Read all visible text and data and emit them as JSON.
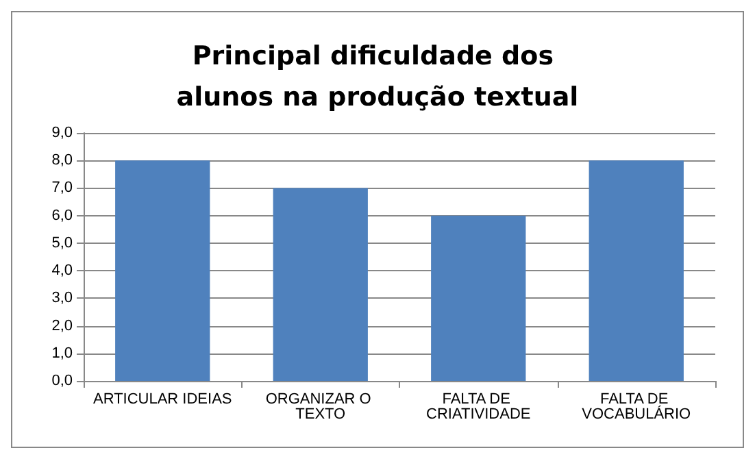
{
  "chart_data": {
    "type": "bar",
    "title": "Principal dificuldade dos alunos na produção textual",
    "categories": [
      "ARTICULAR IDEIAS",
      "ORGANIZAR O TEXTO",
      "FALTA DE CRIATIVIDADE",
      "FALTA DE VOCABULÁRIO"
    ],
    "values": [
      8,
      7,
      6,
      8
    ],
    "color": "#4f81bd",
    "ylim": [
      0,
      9
    ],
    "yticks": [
      {
        "value": 0,
        "label": "0,0"
      },
      {
        "value": 1,
        "label": "1,0"
      },
      {
        "value": 2,
        "label": "2,0"
      },
      {
        "value": 3,
        "label": "3,0"
      },
      {
        "value": 4,
        "label": "4,0"
      },
      {
        "value": 5,
        "label": "5,0"
      },
      {
        "value": 6,
        "label": "6,0"
      },
      {
        "value": 7,
        "label": "7,0"
      },
      {
        "value": 8,
        "label": "8,0"
      },
      {
        "value": 9,
        "label": "9,0"
      }
    ],
    "grid": true
  }
}
